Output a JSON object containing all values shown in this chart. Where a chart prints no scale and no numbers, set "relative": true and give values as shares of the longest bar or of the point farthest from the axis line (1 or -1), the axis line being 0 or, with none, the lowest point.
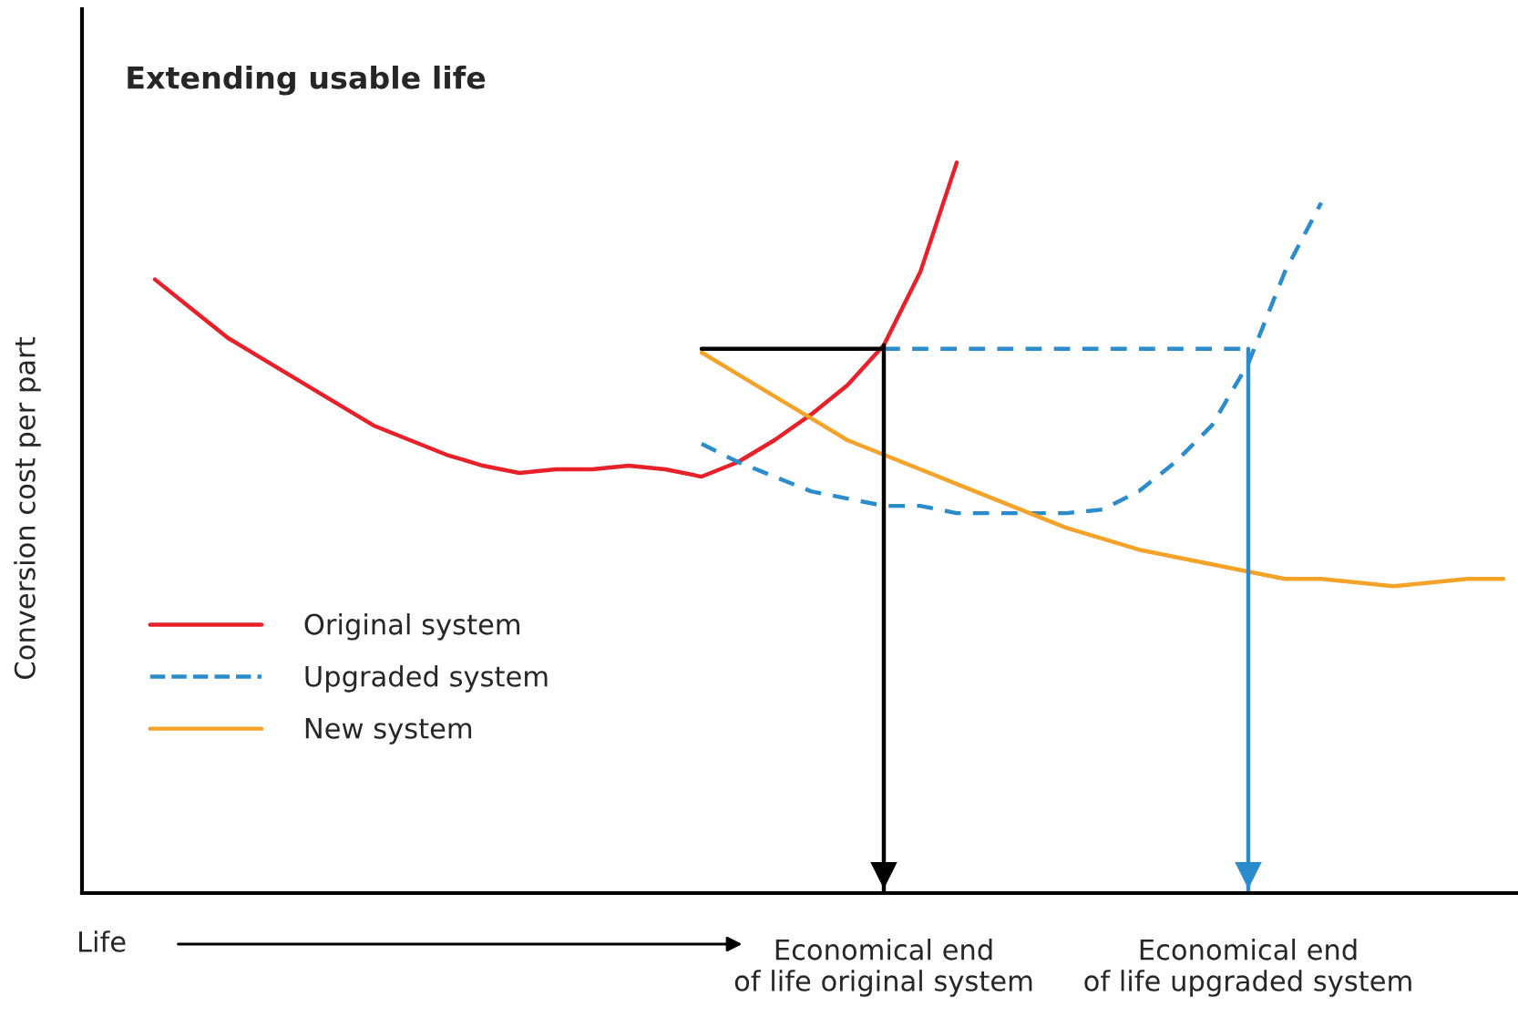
{
  "chart_data": {
    "type": "line",
    "title": "Extending usable life",
    "xlabel": "Life",
    "ylabel": "Conversion cost per part",
    "relative": true,
    "legend": "bottom left",
    "grid": false,
    "categories": [
      null,
      null,
      null,
      null,
      null,
      null,
      null,
      null,
      null,
      null,
      null,
      null,
      null,
      null,
      null,
      null,
      null,
      null,
      null,
      null,
      null,
      null,
      "Economical end\nof life original system",
      null,
      null,
      null,
      null,
      null,
      null,
      null,
      null,
      null,
      "Economical end\nof life upgraded system",
      null,
      null,
      null,
      null,
      null,
      null,
      null
    ],
    "series": [
      {
        "name": "Original system",
        "color": "#e8202a",
        "line_style": "solid",
        "values": [
          null,
          null,
          0.84,
          0.8,
          0.76,
          0.73,
          0.7,
          0.67,
          0.64,
          0.62,
          0.6,
          0.585,
          0.575,
          0.58,
          0.58,
          0.585,
          0.58,
          0.57,
          0.59,
          0.62,
          0.655,
          0.695,
          0.75,
          0.85,
          1,
          null,
          null,
          null,
          null,
          null,
          null,
          null,
          null,
          null,
          null,
          null,
          null,
          null,
          null,
          null
        ]
      },
      {
        "name": "Upgraded system",
        "color": "#2a8ccc",
        "line_style": "dashed",
        "values": [
          null,
          null,
          null,
          null,
          null,
          null,
          null,
          null,
          null,
          null,
          null,
          null,
          null,
          null,
          null,
          null,
          null,
          0.615,
          0.59,
          0.57,
          0.55,
          0.54,
          0.53,
          0.53,
          0.52,
          0.52,
          0.52,
          0.52,
          0.525,
          0.55,
          0.59,
          0.64,
          0.725,
          0.85,
          0.945,
          null,
          null,
          null,
          null,
          null
        ]
      },
      {
        "name": "New system",
        "color": "#f5a228",
        "line_style": "solid",
        "values": [
          null,
          null,
          null,
          null,
          null,
          null,
          null,
          null,
          null,
          null,
          null,
          null,
          null,
          null,
          null,
          null,
          null,
          0.74,
          0.71,
          0.68,
          0.65,
          0.62,
          0.6,
          0.58,
          0.56,
          0.54,
          0.52,
          0.5,
          0.485,
          0.47,
          0.46,
          0.45,
          0.44,
          0.43,
          0.43,
          0.425,
          0.42,
          0.425,
          0.43,
          0.43
        ]
      },
      {
        "color": "#000000",
        "line_style": "solid",
        "values": [
          null,
          null,
          null,
          null,
          null,
          null,
          null,
          null,
          null,
          null,
          null,
          null,
          null,
          null,
          null,
          null,
          null,
          0.745,
          0.745,
          0.745,
          0.745,
          0.745,
          0.745,
          null,
          null,
          null,
          null,
          null,
          null,
          null,
          null,
          null,
          null,
          null,
          null,
          null,
          null,
          null,
          null,
          null
        ]
      },
      {
        "color": "#2a8ccc",
        "line_style": "dashed",
        "values": [
          null,
          null,
          null,
          null,
          null,
          null,
          null,
          null,
          null,
          null,
          null,
          null,
          null,
          null,
          null,
          null,
          null,
          null,
          null,
          null,
          null,
          null,
          0.745,
          0.745,
          0.745,
          0.745,
          0.745,
          0.745,
          0.745,
          0.745,
          0.745,
          0.745,
          0.745,
          null,
          null,
          null,
          null,
          null,
          null,
          null
        ]
      }
    ],
    "ref_lines": [
      {
        "axis": "x",
        "value": "Economical end\nof life original system",
        "color": "#000000"
      },
      {
        "axis": "x",
        "value": "Economical end\nof life upgraded system",
        "color": "#2a8ccc"
      }
    ]
  }
}
